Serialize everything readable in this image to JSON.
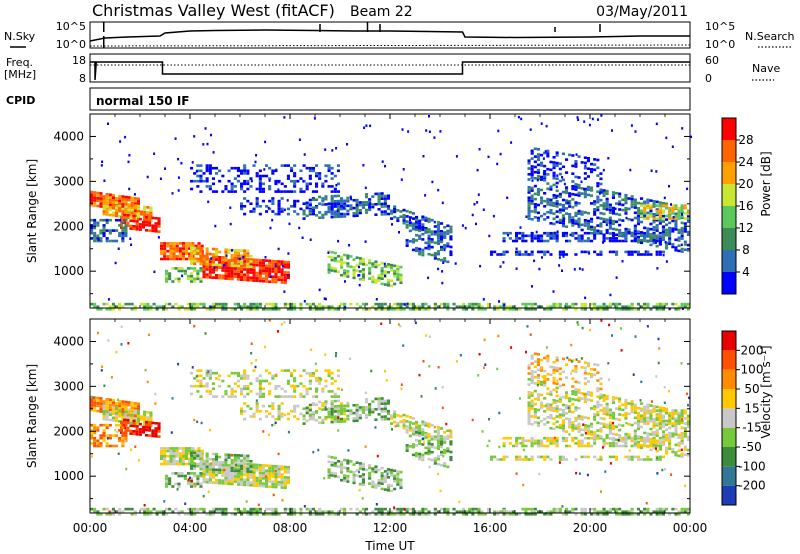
{
  "header": {
    "station": "Christmas Valley West (fitACF)",
    "beam": "Beam 22",
    "date": "03/May/2011"
  },
  "panel_sky": {
    "left_label": "N.Sky",
    "right_label": "N.Search",
    "tick_top": "10^5",
    "tick_bottom": "10^0",
    "right_tick_top": "10^5",
    "right_tick_bottom": "10^0"
  },
  "panel_freq": {
    "left_label_line1": "Freq.",
    "left_label_line2": "[MHz]",
    "right_label": "Nave",
    "tick_top": "18",
    "tick_bottom": "8",
    "right_tick_top": "60",
    "right_tick_bottom": "0"
  },
  "panel_cpid": {
    "left_label": "CPID",
    "mode": "normal 150 IF"
  },
  "time_axis": {
    "label": "Time UT",
    "ticks": [
      "00:00",
      "04:00",
      "08:00",
      "12:00",
      "16:00",
      "20:00",
      "00:00"
    ]
  },
  "chart_data": [
    {
      "type": "heatmap",
      "ylabel": "Slant Range [km]",
      "yticks": [
        "1000",
        "2000",
        "3000",
        "4000"
      ],
      "ylim": [
        180,
        4500
      ],
      "xlim_hours": [
        0,
        24
      ],
      "colorbar": {
        "label": "Power [dB]",
        "ticks": [
          "4",
          "8",
          "12",
          "16",
          "20",
          "24",
          "28"
        ],
        "colors": [
          "#0000ff",
          "#2d6eb4",
          "#3c8c5a",
          "#5ac85a",
          "#c8e632",
          "#ffa000",
          "#ff6400",
          "#ff0000"
        ]
      }
    },
    {
      "type": "heatmap",
      "ylabel": "Velocity [m s^-1]",
      "ylabel_main": "Slant Range [km]",
      "yticks": [
        "1000",
        "2000",
        "3000",
        "4000"
      ],
      "ylim": [
        180,
        4500
      ],
      "xlim_hours": [
        0,
        24
      ],
      "colorbar": {
        "label": "Velocity [m s⁻¹]",
        "ticks": [
          "200",
          "100",
          "50",
          "15",
          "-15",
          "-50",
          "-100",
          "-200"
        ],
        "colors": [
          "#1e3cb4",
          "#327896",
          "#3c8c3c",
          "#78c83c",
          "#c8c8c8",
          "#ffc800",
          "#ff8c00",
          "#ff5000",
          "#e60000"
        ]
      }
    }
  ]
}
